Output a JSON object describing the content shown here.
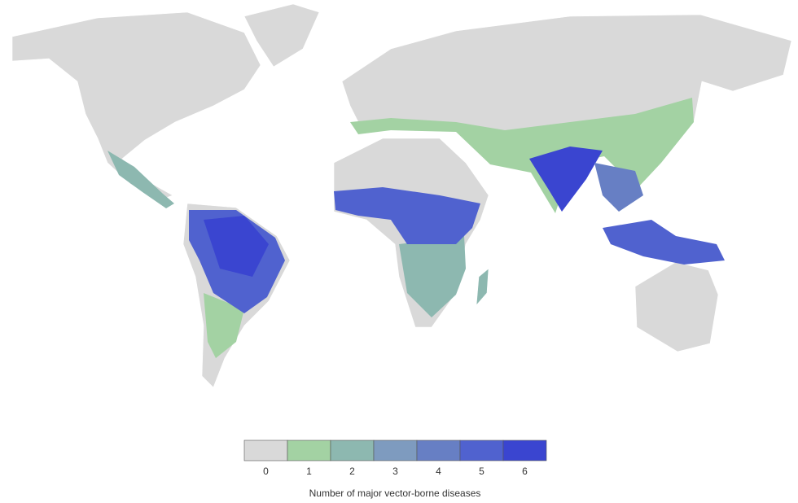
{
  "legend": {
    "title": "Number of major vector-borne diseases",
    "classes": [
      {
        "label": 0,
        "color": "#d9d9d9"
      },
      {
        "label": 1,
        "color": "#a3d2a3"
      },
      {
        "label": 2,
        "color": "#8db8b0"
      },
      {
        "label": 3,
        "color": "#7e9bbf"
      },
      {
        "label": 4,
        "color": "#677fc4"
      },
      {
        "label": 5,
        "color": "#5062cf"
      },
      {
        "label": 6,
        "color": "#3a45d0"
      }
    ]
  }
}
